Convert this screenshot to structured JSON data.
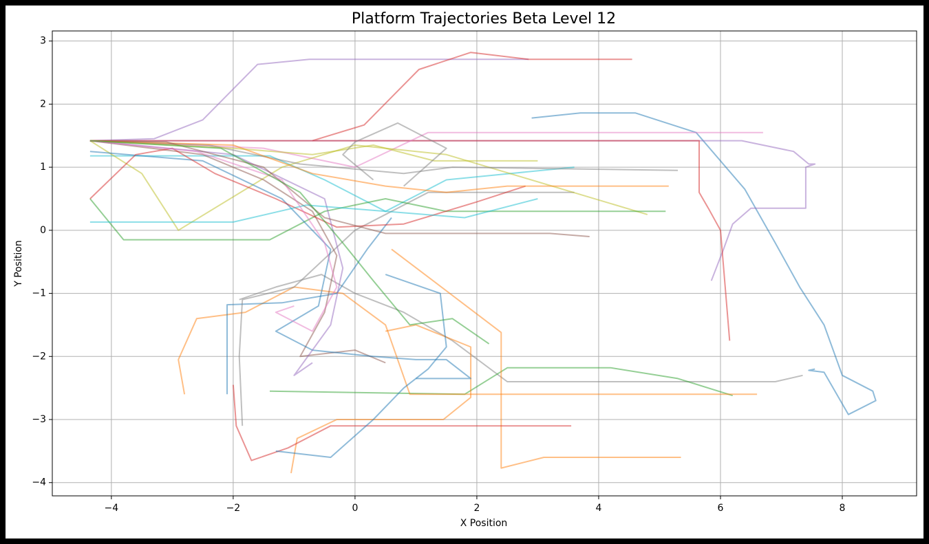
{
  "chart_data": {
    "type": "line",
    "title": "Platform Trajectories Beta Level 12",
    "x_label": "X Position",
    "y_label": "Y Position",
    "xlim": [
      -4.97,
      9.22
    ],
    "ylim": [
      -4.21,
      3.16
    ],
    "xticks": [
      {
        "value": -4,
        "label": "−4"
      },
      {
        "value": -2,
        "label": "−2"
      },
      0,
      2,
      4,
      6,
      8
    ],
    "yticks": [
      {
        "value": -4,
        "label": "−4"
      },
      {
        "value": -3,
        "label": "−3"
      },
      {
        "value": -2,
        "label": "−2"
      },
      {
        "value": -1,
        "label": "−1"
      },
      0,
      1,
      2,
      3
    ],
    "grid": true,
    "alpha": 0.5,
    "series": [
      {
        "color": "#1f77b4",
        "x": [
          2.9,
          3.7,
          4.6,
          5.6,
          6.4,
          6.9,
          7.3,
          7.7,
          8.0,
          8.5,
          8.55,
          8.1,
          7.7,
          7.45,
          7.55
        ],
        "y": [
          1.78,
          1.86,
          1.86,
          1.55,
          0.65,
          -0.2,
          -0.9,
          -1.5,
          -2.3,
          -2.55,
          -2.7,
          -2.92,
          -2.25,
          -2.22,
          -2.2
        ]
      },
      {
        "color": "#9467bd",
        "x": [
          -4.35,
          -3.3,
          -2.5,
          -1.6,
          -0.75,
          2.85
        ],
        "y": [
          1.42,
          1.45,
          1.75,
          2.63,
          2.71,
          2.71
        ]
      },
      {
        "color": "#d62728",
        "x": [
          -0.7,
          0.15,
          1.05,
          1.9,
          2.85,
          4.55
        ],
        "y": [
          1.42,
          1.67,
          2.55,
          2.82,
          2.71,
          2.71
        ]
      },
      {
        "color": "#9467bd",
        "x": [
          -4.35,
          6.35,
          7.2,
          7.45,
          7.55,
          7.4,
          7.4,
          6.5,
          6.2,
          6.05,
          5.85
        ],
        "y": [
          1.42,
          1.42,
          1.25,
          1.05,
          1.05,
          1.0,
          0.35,
          0.35,
          0.1,
          -0.3,
          -0.8
        ]
      },
      {
        "color": "#d62728",
        "x": [
          -4.35,
          5.65,
          5.65,
          5.8,
          6.0,
          6.15
        ],
        "y": [
          1.42,
          1.42,
          0.6,
          0.35,
          0.0,
          -1.75
        ]
      },
      {
        "color": "#7f7f7f",
        "x": [
          -1.9,
          -1.3,
          -0.55,
          0,
          0.8,
          1.6,
          2.5,
          6.9,
          7.35
        ],
        "y": [
          -1.1,
          -0.9,
          -0.7,
          -1.0,
          -1.3,
          -1.75,
          -2.4,
          -2.4,
          -2.3
        ]
      },
      {
        "color": "#2ca02c",
        "x": [
          -1.4,
          1.8,
          2.5,
          4.2,
          5.3,
          6.2
        ],
        "y": [
          -2.55,
          -2.6,
          -2.18,
          -2.18,
          -2.35,
          -2.62
        ]
      },
      {
        "color": "#ff7f0e",
        "x": [
          -2.8,
          -2.9,
          -2.6,
          -1.8,
          -1.0,
          -0.2,
          0.5,
          0.9,
          6.6
        ],
        "y": [
          -2.6,
          -2.05,
          -1.4,
          -1.3,
          -0.9,
          -1.0,
          -1.5,
          -2.6,
          -2.6
        ]
      },
      {
        "color": "#ff7f0e",
        "x": [
          -1.05,
          -0.95,
          -0.3,
          1.45,
          1.9,
          1.9,
          1.0,
          0.5
        ],
        "y": [
          -3.85,
          -3.3,
          -3.0,
          -3.0,
          -2.65,
          -1.85,
          -1.5,
          -1.6
        ]
      },
      {
        "color": "#ff7f0e",
        "x": [
          0.6,
          2.4,
          2.4,
          3.1,
          5.35
        ],
        "y": [
          -0.3,
          -1.62,
          -3.77,
          -3.6,
          -3.6
        ]
      },
      {
        "color": "#d62728",
        "x": [
          -2,
          -1.95,
          -1.7,
          -1.1,
          -0.4,
          3.55
        ],
        "y": [
          -2.45,
          -3.1,
          -3.65,
          -3.45,
          -3.1,
          -3.1
        ]
      },
      {
        "color": "#1f77b4",
        "x": [
          -1.3,
          -0.4,
          0.3,
          0.8,
          1.2,
          1.5,
          1.4,
          0.5
        ],
        "y": [
          -3.5,
          -3.6,
          -3.0,
          -2.5,
          -2.2,
          -1.85,
          -1.0,
          -0.7
        ]
      },
      {
        "color": "#1f77b4",
        "x": [
          -2.1,
          -2.1,
          -1.2,
          -0.3,
          0.2,
          0.6
        ],
        "y": [
          -2.6,
          -1.18,
          -1.15,
          -1.0,
          -0.3,
          0.2
        ]
      },
      {
        "color": "#7f7f7f",
        "x": [
          -1.85,
          -1.9,
          -1.85,
          -1.0,
          0,
          1.2,
          3.6
        ],
        "y": [
          -3.1,
          -2.0,
          -1.1,
          -0.9,
          0,
          0.6,
          0.6
        ]
      },
      {
        "color": "#e377c2",
        "x": [
          -4.35,
          -1.5,
          0,
          1.2,
          1.55,
          6.7
        ],
        "y": [
          1.42,
          1.3,
          1.0,
          1.55,
          1.55,
          1.55
        ]
      },
      {
        "color": "#17becf",
        "x": [
          -4.35,
          -1.4,
          -0.5,
          0.5,
          1.5,
          3.6
        ],
        "y": [
          1.18,
          1.18,
          0.8,
          0.3,
          0.8,
          1.0
        ]
      },
      {
        "color": "#bcbd22",
        "x": [
          -4.35,
          -3.5,
          -3.1,
          -2.9,
          -1.2,
          0,
          1.5,
          4.8
        ],
        "y": [
          1.42,
          0.9,
          0.3,
          0.0,
          1.0,
          1.35,
          1.2,
          0.25
        ]
      },
      {
        "color": "#8c564b",
        "x": [
          -4.35,
          -2.5,
          -1.5,
          -0.7,
          -0.3,
          -0.5,
          -0.9,
          0,
          0.5
        ],
        "y": [
          1.42,
          1.2,
          0.8,
          0.3,
          -0.4,
          -1.3,
          -2.0,
          -1.9,
          -2.1
        ]
      },
      {
        "color": "#2ca02c",
        "x": [
          -4.35,
          -3.8,
          -1.4,
          -0.5,
          0.5,
          1.5,
          5.1
        ],
        "y": [
          0.5,
          -0.15,
          -0.15,
          0.3,
          0.5,
          0.3,
          0.3
        ]
      },
      {
        "color": "#1f77b4",
        "x": [
          -4.35,
          -2.5,
          -1.2,
          -0.4,
          -0.6,
          -1.3,
          -0.7,
          0.3,
          1.0,
          1.5,
          1.9,
          1.0
        ],
        "y": [
          1.25,
          1.1,
          0.5,
          -0.3,
          -1.2,
          -1.6,
          -1.9,
          -2.0,
          -2.05,
          -2.05,
          -2.35,
          -2.35
        ]
      },
      {
        "color": "#d62728",
        "x": [
          -4.35,
          -3.6,
          -3.0,
          -2.3,
          -1.3,
          -0.3,
          0.8,
          2.0,
          2.8
        ],
        "y": [
          0.5,
          1.2,
          1.3,
          0.9,
          0.5,
          0.05,
          0.1,
          0.45,
          0.7
        ]
      },
      {
        "color": "#9467bd",
        "x": [
          -4.35,
          -2.0,
          -0.5,
          -0.2,
          -0.4,
          -1.0,
          -0.7
        ],
        "y": [
          1.42,
          1.2,
          0.5,
          -0.6,
          -1.5,
          -2.3,
          -2.1
        ]
      },
      {
        "color": "#7f7f7f",
        "x": [
          -4.35,
          -2.4,
          -0.9,
          0.8,
          1.6,
          5.3
        ],
        "y": [
          1.42,
          1.35,
          1.05,
          0.9,
          1.0,
          0.95
        ]
      },
      {
        "color": "#ff7f0e",
        "x": [
          -4.35,
          -2.0,
          -0.7,
          0.5,
          1.5,
          2.5,
          5.15
        ],
        "y": [
          1.42,
          1.35,
          0.9,
          0.7,
          0.6,
          0.7,
          0.7
        ]
      },
      {
        "color": "#8c564b",
        "x": [
          -4.35,
          -3.1,
          -1.5,
          -0.5,
          0.5,
          3.2,
          3.85
        ],
        "y": [
          1.42,
          1.4,
          1.0,
          0.2,
          -0.05,
          -0.05,
          -0.1
        ]
      },
      {
        "color": "#17becf",
        "x": [
          -4.35,
          -2.0,
          -0.8,
          0.5,
          1.8,
          3.0
        ],
        "y": [
          0.13,
          0.13,
          0.4,
          0.3,
          0.2,
          0.5
        ]
      },
      {
        "color": "#bcbd22",
        "x": [
          -4.35,
          -2.0,
          -0.7,
          0.3,
          1.3,
          3.0
        ],
        "y": [
          1.42,
          1.3,
          1.2,
          1.35,
          1.1,
          1.1
        ]
      },
      {
        "color": "#e377c2",
        "x": [
          -4.35,
          -2.6,
          -1.2,
          -0.5,
          -0.3,
          -0.7,
          -1.3,
          -1.0
        ],
        "y": [
          1.42,
          1.25,
          0.8,
          -0.2,
          -0.9,
          -1.6,
          -1.3,
          -1.2
        ]
      },
      {
        "color": "#2ca02c",
        "x": [
          -4.35,
          -2.2,
          -0.9,
          -0.2,
          0.3,
          0.9,
          1.6,
          2.2
        ],
        "y": [
          1.42,
          1.3,
          0.6,
          -0.2,
          -0.8,
          -1.5,
          -1.4,
          -1.8
        ]
      },
      {
        "color": "#7f7f7f",
        "x": [
          0.8,
          1.5,
          0.7,
          0.0,
          -0.2,
          0.3
        ],
        "y": [
          0.7,
          1.3,
          1.7,
          1.4,
          1.2,
          0.8
        ]
      }
    ]
  }
}
